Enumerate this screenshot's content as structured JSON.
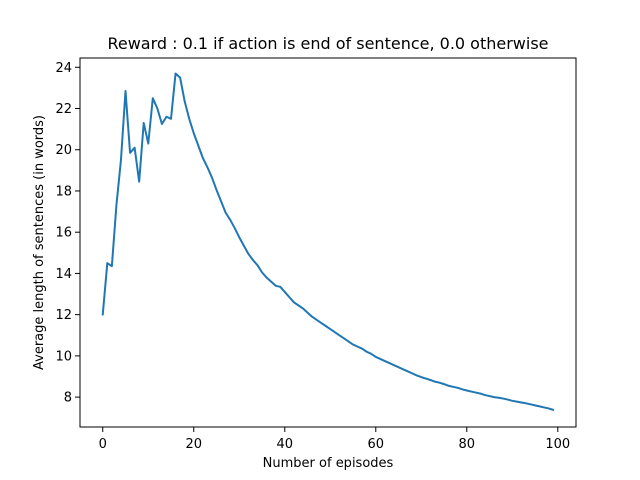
{
  "chart_data": {
    "type": "line",
    "title": "Reward : 0.1 if action is end of sentence, 0.0 otherwise",
    "xlabel": "Number of episodes",
    "ylabel": "Average length of sentences (in words)",
    "xlim": [
      -5,
      104
    ],
    "ylim": [
      6.55,
      24.45
    ],
    "xticks": [
      0,
      20,
      40,
      60,
      80,
      100
    ],
    "yticks": [
      8,
      10,
      12,
      14,
      16,
      18,
      20,
      22,
      24
    ],
    "grid": false,
    "legend": "none",
    "colors": {
      "line": "#1f77b4",
      "axes": "#000000",
      "background": "#ffffff"
    },
    "series": [
      {
        "x": [
          0,
          1,
          2,
          3,
          4,
          5,
          6,
          7,
          8,
          9,
          10,
          11,
          12,
          13,
          14,
          15,
          16,
          17,
          18,
          19,
          20,
          21,
          22,
          23,
          24,
          25,
          26,
          27,
          28,
          29,
          30,
          31,
          32,
          33,
          34,
          35,
          36,
          37,
          38,
          39,
          40,
          41,
          42,
          43,
          44,
          45,
          46,
          47,
          48,
          49,
          50,
          51,
          52,
          53,
          54,
          55,
          56,
          57,
          58,
          59,
          60,
          61,
          62,
          63,
          64,
          65,
          66,
          67,
          68,
          69,
          70,
          71,
          72,
          73,
          74,
          75,
          76,
          77,
          78,
          79,
          80,
          81,
          82,
          83,
          84,
          85,
          86,
          87,
          88,
          89,
          90,
          91,
          92,
          93,
          94,
          95,
          96,
          97,
          98,
          99
        ],
        "values": [
          12.0,
          14.5,
          14.35,
          17.3,
          19.5,
          22.85,
          19.85,
          20.1,
          18.45,
          21.3,
          20.3,
          22.5,
          22.0,
          21.25,
          21.6,
          21.5,
          23.7,
          23.5,
          22.35,
          21.5,
          20.8,
          20.2,
          19.6,
          19.15,
          18.65,
          18.05,
          17.5,
          16.95,
          16.6,
          16.2,
          15.75,
          15.35,
          14.95,
          14.65,
          14.4,
          14.05,
          13.8,
          13.6,
          13.4,
          13.35,
          13.1,
          12.85,
          12.6,
          12.45,
          12.3,
          12.1,
          11.9,
          11.75,
          11.6,
          11.45,
          11.3,
          11.15,
          11.0,
          10.85,
          10.7,
          10.55,
          10.45,
          10.35,
          10.2,
          10.1,
          9.95,
          9.85,
          9.75,
          9.65,
          9.55,
          9.45,
          9.35,
          9.25,
          9.15,
          9.05,
          8.97,
          8.9,
          8.83,
          8.75,
          8.7,
          8.63,
          8.55,
          8.5,
          8.45,
          8.38,
          8.32,
          8.27,
          8.22,
          8.17,
          8.1,
          8.05,
          8.0,
          7.97,
          7.93,
          7.88,
          7.82,
          7.78,
          7.74,
          7.7,
          7.65,
          7.6,
          7.55,
          7.5,
          7.45,
          7.38
        ]
      }
    ]
  }
}
